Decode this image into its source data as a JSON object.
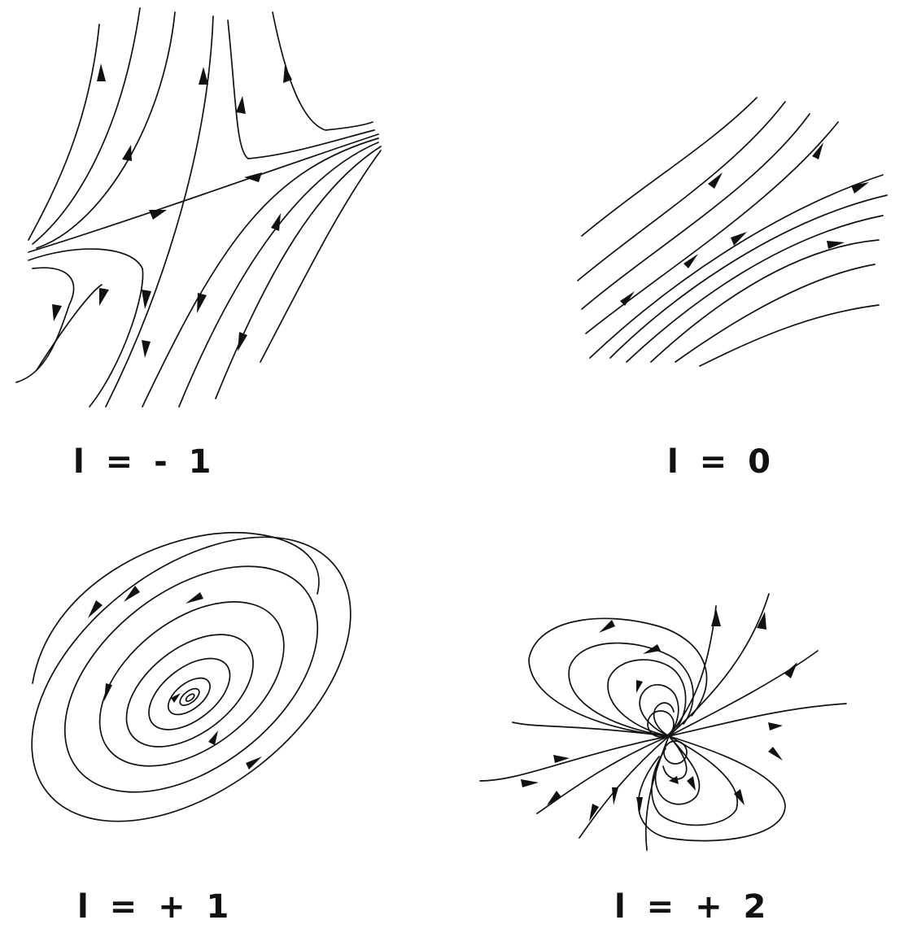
{
  "figure": {
    "panels": [
      {
        "id": "saddle",
        "caption": "l = - 1",
        "index_value": -1
      },
      {
        "id": "regular",
        "caption": "l = 0",
        "index_value": 0
      },
      {
        "id": "center",
        "caption": "l = + 1",
        "index_value": 1
      },
      {
        "id": "dipole",
        "caption": "l = + 2",
        "index_value": 2
      }
    ]
  }
}
